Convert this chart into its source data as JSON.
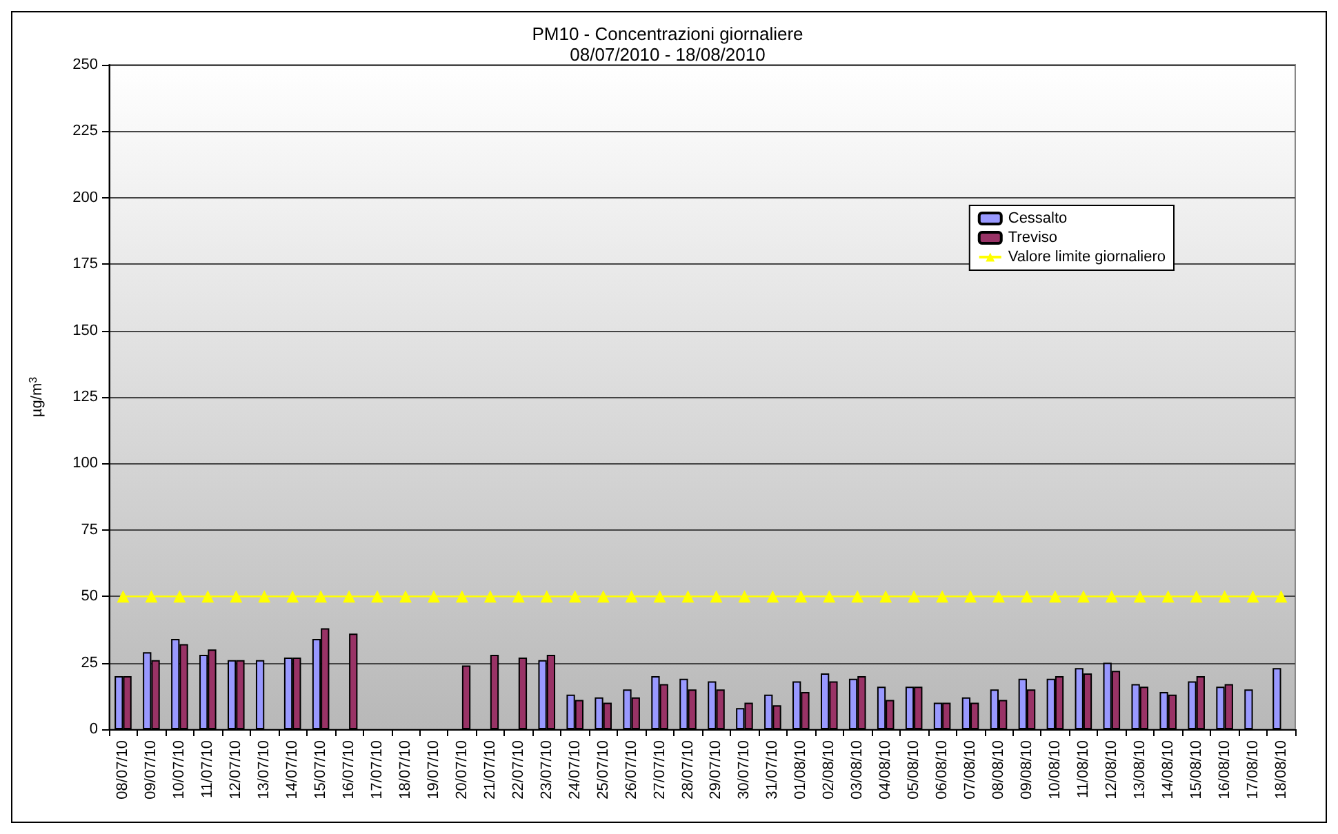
{
  "chart_data": {
    "type": "bar",
    "title": "PM10 - Concentrazioni giornaliere",
    "subtitle": "08/07/2010 - 18/08/2010",
    "ylabel": "µg/m$^{3}$",
    "categories": [
      "08/07/10",
      "09/07/10",
      "10/07/10",
      "11/07/10",
      "12/07/10",
      "13/07/10",
      "14/07/10",
      "15/07/10",
      "16/07/10",
      "17/07/10",
      "18/07/10",
      "19/07/10",
      "20/07/10",
      "21/07/10",
      "22/07/10",
      "23/07/10",
      "24/07/10",
      "25/07/10",
      "26/07/10",
      "27/07/10",
      "28/07/10",
      "29/07/10",
      "30/07/10",
      "31/07/10",
      "01/08/10",
      "02/08/10",
      "03/08/10",
      "04/08/10",
      "05/08/10",
      "06/08/10",
      "07/08/10",
      "08/08/10",
      "09/08/10",
      "10/08/10",
      "11/08/10",
      "12/08/10",
      "13/08/10",
      "14/08/10",
      "15/08/10",
      "16/08/10",
      "17/08/10",
      "18/08/10"
    ],
    "series": [
      {
        "name": "Cessalto",
        "color": "#9999ff",
        "values": [
          20,
          29,
          34,
          28,
          26,
          26,
          27,
          34,
          null,
          null,
          null,
          null,
          null,
          null,
          null,
          26,
          13,
          12,
          15,
          20,
          19,
          18,
          8,
          13,
          18,
          21,
          19,
          16,
          16,
          10,
          12,
          15,
          19,
          19,
          23,
          25,
          17,
          14,
          18,
          16,
          15,
          23
        ]
      },
      {
        "name": "Treviso",
        "color": "#993366",
        "values": [
          20,
          26,
          32,
          30,
          26,
          null,
          27,
          38,
          36,
          null,
          null,
          null,
          24,
          28,
          27,
          28,
          11,
          10,
          12,
          17,
          15,
          15,
          10,
          9,
          14,
          18,
          20,
          11,
          16,
          10,
          10,
          11,
          15,
          20,
          21,
          22,
          16,
          13,
          20,
          17,
          null,
          null
        ]
      },
      {
        "name": "Valore limite giornaliero",
        "type": "line",
        "marker": "triangle",
        "color": "#ffff00",
        "values": [
          50,
          50,
          50,
          50,
          50,
          50,
          50,
          50,
          50,
          50,
          50,
          50,
          50,
          50,
          50,
          50,
          50,
          50,
          50,
          50,
          50,
          50,
          50,
          50,
          50,
          50,
          50,
          50,
          50,
          50,
          50,
          50,
          50,
          50,
          50,
          50,
          50,
          50,
          50,
          50,
          50,
          50
        ]
      }
    ],
    "ylim": [
      0,
      250
    ],
    "yticks": [
      0,
      25,
      50,
      75,
      100,
      125,
      150,
      175,
      200,
      225,
      250
    ],
    "grid": "y",
    "legend": "top right"
  }
}
